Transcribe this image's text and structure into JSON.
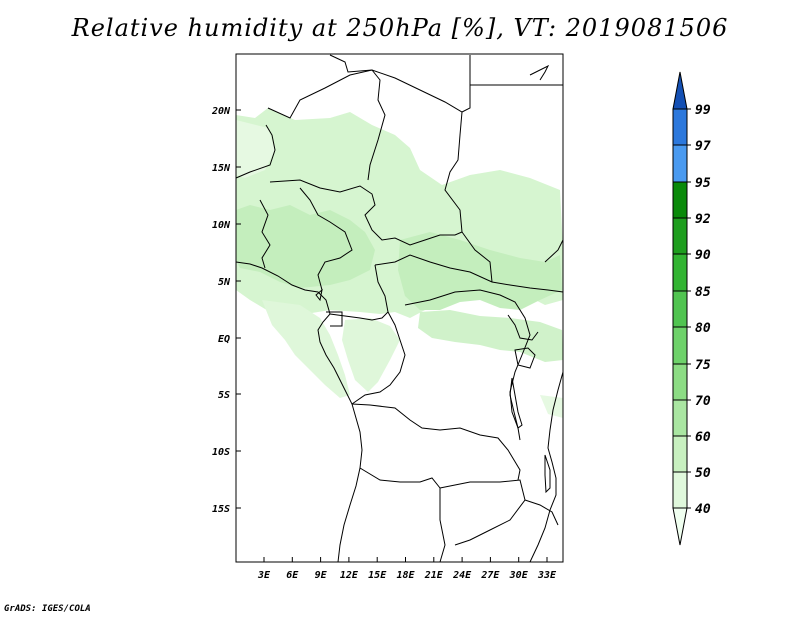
{
  "title": "Relative humidity at 250hPa [%], VT: 2019081506",
  "footer": "GrADS: IGES/COLA",
  "map": {
    "lon_range": [
      0,
      35
    ],
    "lat_range": [
      -20,
      25
    ],
    "lat_ticks": [
      "20N",
      "15N",
      "10N",
      "5N",
      "EQ",
      "5S",
      "10S",
      "15S"
    ],
    "lon_ticks": [
      "3E",
      "6E",
      "9E",
      "12E",
      "15E",
      "18E",
      "21E",
      "24E",
      "27E",
      "30E",
      "33E"
    ],
    "variable": "relative humidity at 250hPa",
    "valid_time": "2019081506"
  },
  "colorbar": {
    "labels": [
      "40",
      "50",
      "60",
      "70",
      "75",
      "80",
      "85",
      "90",
      "92",
      "95",
      "97",
      "99"
    ],
    "colors": [
      "#f0fff0",
      "#e0f8dc",
      "#c8f0c0",
      "#aae6a2",
      "#8cdc84",
      "#6ed26a",
      "#50c450",
      "#32b432",
      "#1e9e1e",
      "#0a8a0a",
      "#4a9af0",
      "#2c78dc",
      "#1450b4"
    ]
  }
}
